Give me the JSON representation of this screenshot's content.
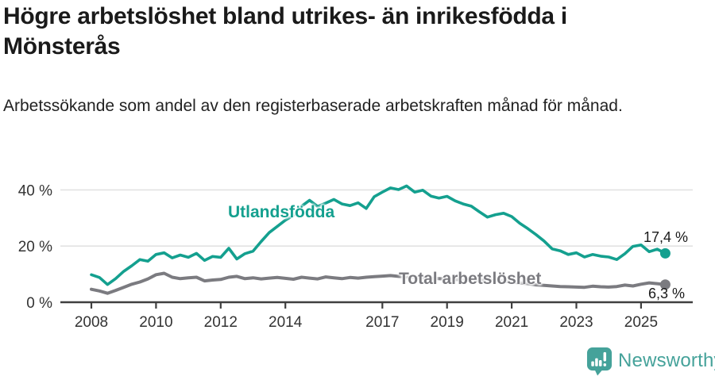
{
  "header": {
    "title": "Högre arbetslöshet bland utrikes- än inrikesfödda i Mönsterås",
    "subtitle": "Arbetssökande som andel av den registerbaserade arbetskraften månad för månad."
  },
  "colors": {
    "foreign_line": "#14a08f",
    "total_line": "#7b7b80",
    "grid": "#e2e2e2",
    "axis": "#3f3f3f",
    "tick_text": "#333333",
    "annotation_text": "#1a1a1a",
    "logo_teal": "#45a29a"
  },
  "chart_data": {
    "type": "line",
    "title": "Högre arbetslöshet bland utrikes- än inrikesfödda i Mönsterås",
    "subtitle": "Arbetssökande som andel av den registerbaserade arbetskraften månad för månad.",
    "xlabel": "",
    "ylabel": "",
    "ylim": [
      0,
      44
    ],
    "xlim": [
      2007.8,
      2026.4
    ],
    "grid": "horizontal",
    "legend_position": "inline-labels",
    "yticks": [
      0,
      20,
      40
    ],
    "ytick_labels": [
      "0 %",
      "20 %",
      "40 %"
    ],
    "xticks": [
      2008,
      2010,
      2012,
      2014,
      2017,
      2019,
      2021,
      2023,
      2025
    ],
    "xtick_labels": [
      "2008",
      "2010",
      "2012",
      "2014",
      "2017",
      "2019",
      "2021",
      "2023",
      "2025"
    ],
    "x": [
      2008.0,
      2008.25,
      2008.5,
      2008.75,
      2009.0,
      2009.25,
      2009.5,
      2009.75,
      2010.0,
      2010.25,
      2010.5,
      2010.75,
      2011.0,
      2011.25,
      2011.5,
      2011.75,
      2012.0,
      2012.25,
      2012.5,
      2012.75,
      2013.0,
      2013.25,
      2013.5,
      2013.75,
      2014.0,
      2014.25,
      2014.5,
      2014.75,
      2015.0,
      2015.25,
      2015.5,
      2015.75,
      2016.0,
      2016.25,
      2016.5,
      2016.75,
      2017.0,
      2017.25,
      2017.5,
      2017.75,
      2018.0,
      2018.25,
      2018.5,
      2018.75,
      2019.0,
      2019.25,
      2019.5,
      2019.75,
      2020.0,
      2020.25,
      2020.5,
      2020.75,
      2021.0,
      2021.25,
      2021.5,
      2021.75,
      2022.0,
      2022.25,
      2022.5,
      2022.75,
      2023.0,
      2023.25,
      2023.5,
      2023.75,
      2024.0,
      2024.25,
      2024.5,
      2024.75,
      2025.0,
      2025.25,
      2025.5,
      2025.75
    ],
    "series": [
      {
        "name": "Utlandsfödda",
        "label": "Utlandsfödda",
        "end_label": "17,4 %",
        "end_value": 17.4,
        "color_key": "foreign_line",
        "values": [
          9.8,
          8.8,
          6.3,
          8.4,
          11.0,
          13.0,
          15.2,
          14.6,
          17.0,
          17.6,
          15.8,
          16.8,
          16.0,
          17.4,
          14.9,
          16.3,
          16.0,
          19.2,
          15.4,
          17.3,
          18.2,
          21.6,
          24.8,
          27.0,
          29.2,
          31.0,
          34.2,
          36.3,
          34.1,
          35.3,
          36.6,
          35.0,
          34.4,
          35.4,
          33.4,
          37.6,
          39.2,
          40.7,
          40.1,
          41.4,
          39.2,
          39.9,
          37.8,
          37.1,
          37.7,
          36.1,
          35.0,
          34.2,
          32.2,
          30.3,
          31.2,
          31.7,
          30.5,
          28.1,
          26.2,
          24.1,
          21.8,
          19.0,
          18.3,
          17.0,
          17.6,
          16.1,
          17.0,
          16.4,
          16.1,
          15.2,
          17.3,
          19.9,
          20.4,
          18.0,
          18.9,
          17.4
        ]
      },
      {
        "name": "Total arbetslöshet",
        "label": "Total arbetslöshet",
        "end_label": "6,3 %",
        "end_value": 6.3,
        "color_key": "total_line",
        "values": [
          4.6,
          4.0,
          3.2,
          4.2,
          5.3,
          6.4,
          7.2,
          8.3,
          9.8,
          10.3,
          8.9,
          8.4,
          8.7,
          8.9,
          7.6,
          7.9,
          8.1,
          8.9,
          9.2,
          8.4,
          8.7,
          8.3,
          8.6,
          8.8,
          8.5,
          8.2,
          8.9,
          8.6,
          8.3,
          9.0,
          8.7,
          8.4,
          8.8,
          8.6,
          8.9,
          9.1,
          9.3,
          9.5,
          9.2,
          9.0,
          8.8,
          8.7,
          8.5,
          8.4,
          8.2,
          8.1,
          7.9,
          7.8,
          7.8,
          7.9,
          7.7,
          7.5,
          7.2,
          6.9,
          6.6,
          6.2,
          6.0,
          5.8,
          5.6,
          5.5,
          5.4,
          5.3,
          5.7,
          5.5,
          5.4,
          5.6,
          6.1,
          5.8,
          6.4,
          6.9,
          6.6,
          6.3
        ]
      }
    ]
  },
  "footer": {
    "brand": "Newsworthy",
    "logo_icon": "newsworthy-chart-bubble-icon"
  }
}
